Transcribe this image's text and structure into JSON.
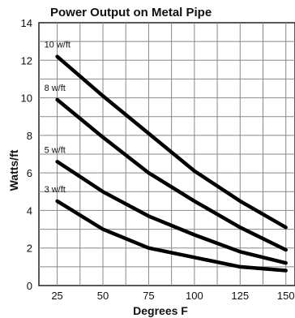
{
  "chart_data": {
    "type": "line",
    "title": "Power Output on Metal Pipe",
    "xlabel": "Degrees F",
    "ylabel": "Watts/ft",
    "x": [
      25,
      50,
      75,
      100,
      125,
      150
    ],
    "xlim": [
      15,
      155
    ],
    "ylim": [
      0,
      14
    ],
    "xticks": [
      "25",
      "50",
      "75",
      "100",
      "125",
      "150"
    ],
    "yticks": [
      "0",
      "2",
      "4",
      "6",
      "8",
      "10",
      "12",
      "14"
    ],
    "grid": true,
    "legend": "inline labels at left of each line",
    "series": [
      {
        "name": "10 w/ft",
        "values": [
          12.2,
          10.1,
          8.1,
          6.1,
          4.5,
          3.1
        ]
      },
      {
        "name": "8 w/ft",
        "values": [
          9.9,
          7.9,
          6.0,
          4.5,
          3.1,
          1.9
        ]
      },
      {
        "name": "5 w/ft",
        "values": [
          6.6,
          5.0,
          3.7,
          2.7,
          1.8,
          1.2
        ]
      },
      {
        "name": "3 w/ft",
        "values": [
          4.5,
          3.0,
          2.0,
          1.5,
          1.0,
          0.8
        ]
      }
    ],
    "colors": {
      "line": "#000000",
      "grid": "#888888",
      "background": "#ffffff"
    }
  }
}
